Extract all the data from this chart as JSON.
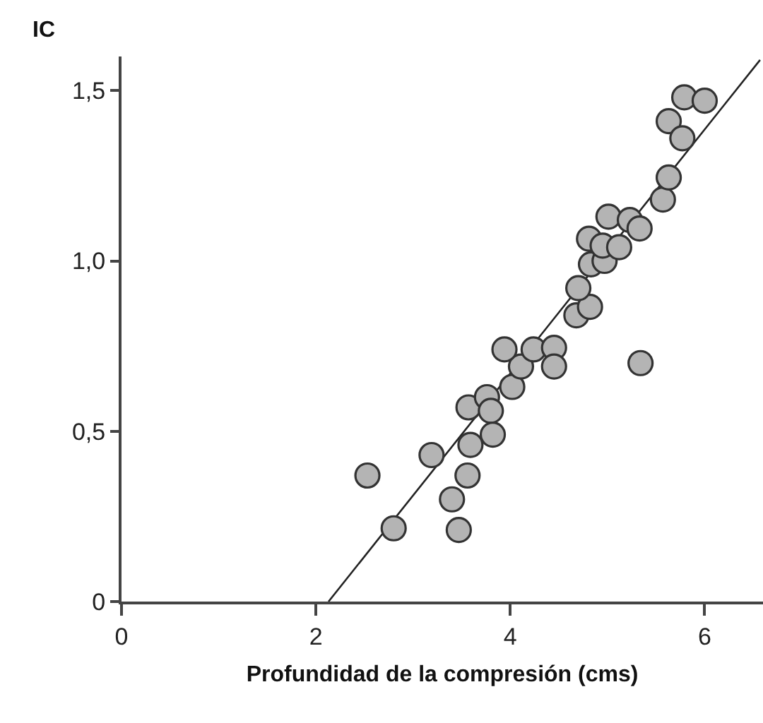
{
  "chart_data": {
    "type": "scatter",
    "xlabel": "Profundidad de la compresión (cms)",
    "ylabel": "IC",
    "xlim": [
      0,
      6.6
    ],
    "ylim": [
      0,
      1.6
    ],
    "xticks": [
      0,
      2,
      4,
      6
    ],
    "yticks": [
      0,
      {
        "value": 0.5,
        "label": "0,5"
      },
      {
        "value": 1,
        "label": "1,0"
      },
      {
        "value": 1.5,
        "label": "1,5"
      }
    ],
    "grid": false,
    "legend": false,
    "marker": "circle",
    "series": [
      {
        "color": "#b4b4b4",
        "x": [
          2.53,
          2.8,
          3.19,
          3.4,
          3.47,
          3.56,
          3.59,
          3.57,
          3.76,
          3.8,
          3.82,
          4.02,
          4.11,
          3.94,
          4.24,
          4.45,
          4.45,
          5.34,
          4.68,
          4.82,
          4.7,
          4.83,
          4.97,
          4.81,
          4.95,
          5.12,
          5.01,
          5.23,
          5.33,
          5.57,
          5.63,
          5.63,
          5.77,
          5.79,
          6.0
        ],
        "values": [
          0.37,
          0.215,
          0.43,
          0.3,
          0.21,
          0.37,
          0.46,
          0.57,
          0.6,
          0.56,
          0.49,
          0.63,
          0.69,
          0.74,
          0.74,
          0.745,
          0.69,
          0.7,
          0.84,
          0.865,
          0.92,
          0.99,
          1.0,
          1.065,
          1.045,
          1.04,
          1.13,
          1.12,
          1.095,
          1.18,
          1.245,
          1.41,
          1.36,
          1.48,
          1.47
        ]
      },
      {
        "type": "line",
        "color": "#222222",
        "marker": "none",
        "line_style": "solid",
        "x": [
          2.13,
          6.57
        ],
        "values": [
          0,
          1.59
        ]
      }
    ]
  }
}
